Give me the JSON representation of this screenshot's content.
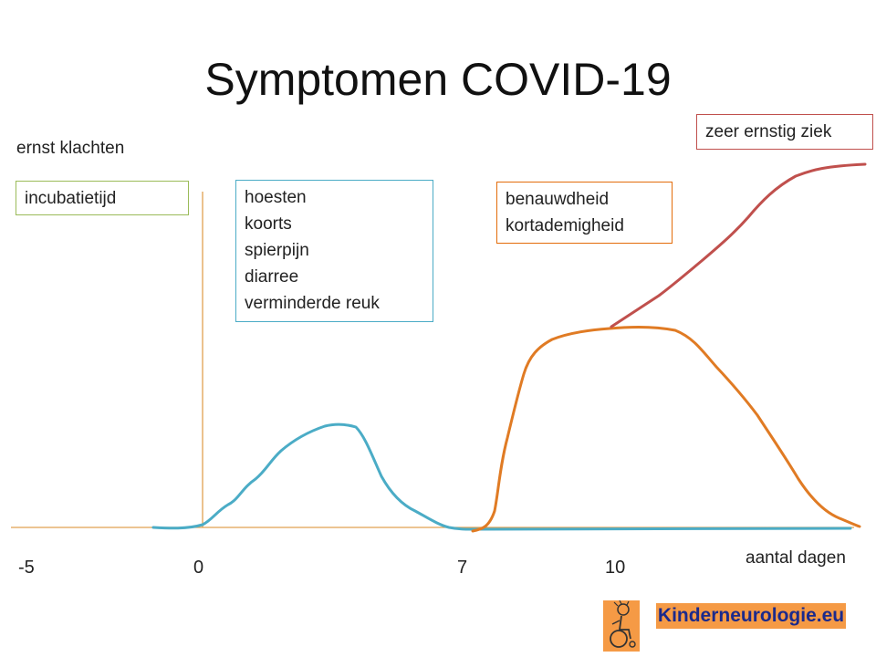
{
  "title": "Symptomen COVID-19",
  "y_axis_label": "ernst klachten",
  "x_axis_label": "aantal dagen",
  "x_ticks": [
    "-5",
    "0",
    "7",
    "10"
  ],
  "boxes": {
    "incubation": {
      "lines": [
        "incubatietijd"
      ],
      "border_color": "#9bbb59"
    },
    "mild": {
      "lines": [
        "hoesten",
        "koorts",
        "spierpijn",
        "diarree",
        "verminderde reuk"
      ],
      "border_color": "#4bacc6"
    },
    "breathing": {
      "lines": [
        "benauwdheid",
        "kortademigheid"
      ],
      "border_color": "#e36c0a"
    },
    "severe": {
      "lines": [
        "zeer ernstig ziek"
      ],
      "border_color": "#c0504d"
    }
  },
  "curve_colors": {
    "mild": "#4bacc6",
    "moderate": "#e07b24",
    "severe": "#c0504d",
    "axis": "#e0a050"
  },
  "logo": {
    "text": "Kinderneurologie.eu",
    "icon": "wheelchair-child-icon"
  }
}
